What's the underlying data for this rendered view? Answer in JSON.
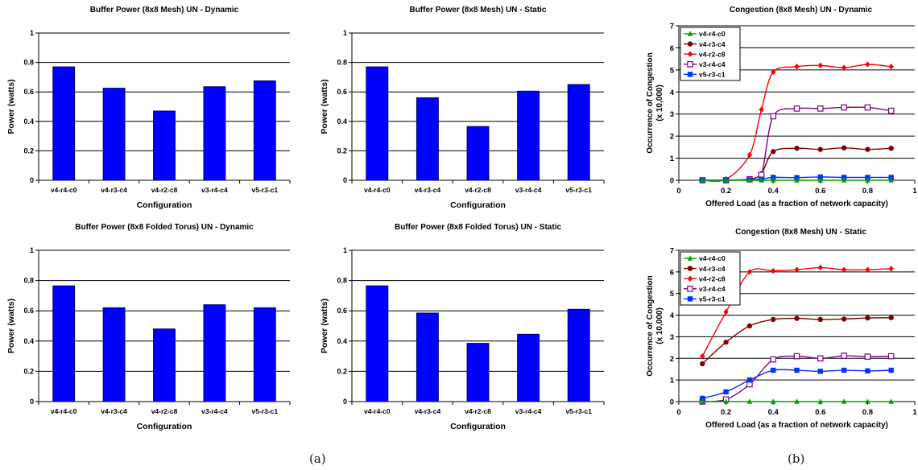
{
  "captions": {
    "a": "(a)",
    "b": "(b)"
  },
  "colors": {
    "bar": "#0000ff",
    "bar_stroke": "#00006e",
    "grid": "#000000"
  },
  "chart_data": [
    {
      "type": "bar",
      "title": "Buffer Power (8x8 Mesh) UN - Dynamic",
      "xlabel": "Configuration",
      "ylabel": "Power (watts)",
      "categories": [
        "v4-r4-c0",
        "v4-r3-c4",
        "v4-r2-c8",
        "v3-r4-c4",
        "v5-r3-c1"
      ],
      "values": [
        0.77,
        0.625,
        0.47,
        0.635,
        0.675
      ],
      "ylim": [
        0,
        1
      ],
      "yticks": [
        "0",
        "0.2",
        "0.4",
        "0.6",
        "0.8",
        "1"
      ],
      "grid": true
    },
    {
      "type": "bar",
      "title": "Buffer Power (8x8 Mesh) UN - Static",
      "xlabel": "Configuration",
      "ylabel": "Power (watts)",
      "categories": [
        "v4-r4-c0",
        "v4-r3-c4",
        "v4-r2-c8",
        "v3-r4-c4",
        "v5-r3-c1"
      ],
      "values": [
        0.77,
        0.56,
        0.365,
        0.605,
        0.65
      ],
      "ylim": [
        0,
        1
      ],
      "yticks": [
        "0",
        "0.2",
        "0.4",
        "0.6",
        "0.8",
        "1"
      ],
      "grid": true
    },
    {
      "type": "bar",
      "title": "Buffer Power (8x8 Folded Torus) UN - Dynamic",
      "xlabel": "Configuration",
      "ylabel": "Power (watts)",
      "categories": [
        "v4-r4-c0",
        "v4-r3-c4",
        "v4-r2-c8",
        "v3-r4-c4",
        "v5-r3-c1"
      ],
      "values": [
        0.765,
        0.62,
        0.48,
        0.64,
        0.62
      ],
      "ylim": [
        0,
        1
      ],
      "yticks": [
        "0",
        "0.2",
        "0.4",
        "0.6",
        "0.8",
        "1"
      ],
      "grid": true
    },
    {
      "type": "bar",
      "title": "Buffer Power (8x8 Folded Torus) UN - Static",
      "xlabel": "Configuration",
      "ylabel": "Power (watts)",
      "categories": [
        "v4-r4-c0",
        "v4-r3-c4",
        "v4-r2-c8",
        "v3-r4-c4",
        "v5-r3-c1"
      ],
      "values": [
        0.765,
        0.585,
        0.385,
        0.445,
        0.61
      ],
      "ylim": [
        0,
        1
      ],
      "yticks": [
        "0",
        "0.2",
        "0.4",
        "0.6",
        "0.8",
        "1"
      ],
      "grid": true
    },
    {
      "type": "line",
      "title": "Congestion (8x8 Mesh) UN - Dynamic",
      "xlabel": "Offered Load (as a fraction of network capacity)",
      "ylabel": [
        "Occurrence of Congestion",
        "(x 10,000)"
      ],
      "xlim": [
        0,
        1
      ],
      "ylim": [
        0,
        7
      ],
      "xticks": [
        "0",
        "0.2",
        "0.4",
        "0.6",
        "0.8",
        "1"
      ],
      "yticks": [
        "0",
        "1",
        "2",
        "3",
        "4",
        "5",
        "6",
        "7"
      ],
      "grid": true,
      "legend_position": "top-left",
      "x": [
        0.1,
        0.2,
        0.3,
        0.35,
        0.4,
        0.5,
        0.6,
        0.7,
        0.8,
        0.9
      ],
      "series": [
        {
          "name": "v4-r4-c0",
          "color": "#00a000",
          "marker": "triangle",
          "values": [
            0,
            0,
            0,
            0,
            0,
            0,
            0,
            0,
            0,
            0
          ]
        },
        {
          "name": "v4-r3-c4",
          "color": "#800000",
          "marker": "circle",
          "values": [
            0,
            0,
            0.05,
            0.3,
            1.3,
            1.45,
            1.4,
            1.47,
            1.4,
            1.45
          ]
        },
        {
          "name": "v4-r2-c8",
          "color": "#ff0000",
          "marker": "diamond",
          "values": [
            0,
            0.05,
            1.15,
            3.2,
            4.9,
            5.15,
            5.2,
            5.1,
            5.25,
            5.15
          ]
        },
        {
          "name": "v3-r4-c4",
          "color": "#800080",
          "marker": "square-open",
          "values": [
            0,
            0,
            0.05,
            0.25,
            2.9,
            3.25,
            3.25,
            3.3,
            3.3,
            3.15
          ]
        },
        {
          "name": "v5-r3-c1",
          "color": "#0033ff",
          "marker": "square",
          "values": [
            0,
            0,
            0.02,
            0.05,
            0.13,
            0.12,
            0.15,
            0.13,
            0.13,
            0.13
          ]
        }
      ]
    },
    {
      "type": "line",
      "title": "Congestion (8x8 Mesh) UN - Static",
      "xlabel": "Offered Load (as a fraction of network capacity)",
      "ylabel": [
        "Occurrence of Congestion",
        "(x 10,000)"
      ],
      "xlim": [
        0,
        1
      ],
      "ylim": [
        0,
        7
      ],
      "xticks": [
        "0",
        "0.2",
        "0.4",
        "0.6",
        "0.8",
        "1"
      ],
      "yticks": [
        "0",
        "1",
        "2",
        "3",
        "4",
        "5",
        "6",
        "7"
      ],
      "grid": true,
      "legend_position": "top-left",
      "x": [
        0.1,
        0.2,
        0.3,
        0.4,
        0.5,
        0.6,
        0.7,
        0.8,
        0.9
      ],
      "series": [
        {
          "name": "v4-r4-c0",
          "color": "#00a000",
          "marker": "triangle",
          "values": [
            0,
            0,
            0,
            0,
            0,
            0,
            0,
            0,
            0
          ]
        },
        {
          "name": "v4-r3-c4",
          "color": "#800000",
          "marker": "circle",
          "values": [
            1.75,
            2.75,
            3.5,
            3.8,
            3.85,
            3.8,
            3.82,
            3.87,
            3.88
          ]
        },
        {
          "name": "v4-r2-c8",
          "color": "#ff0000",
          "marker": "diamond",
          "values": [
            2.1,
            4.15,
            6.0,
            6.05,
            6.1,
            6.2,
            6.1,
            6.1,
            6.15
          ]
        },
        {
          "name": "v3-r4-c4",
          "color": "#800080",
          "marker": "square-open",
          "values": [
            0,
            0.1,
            0.8,
            1.95,
            2.1,
            2.0,
            2.12,
            2.08,
            2.1
          ]
        },
        {
          "name": "v5-r3-c1",
          "color": "#0033ff",
          "marker": "square",
          "values": [
            0.15,
            0.45,
            1.0,
            1.45,
            1.45,
            1.4,
            1.45,
            1.42,
            1.45
          ]
        }
      ]
    }
  ]
}
